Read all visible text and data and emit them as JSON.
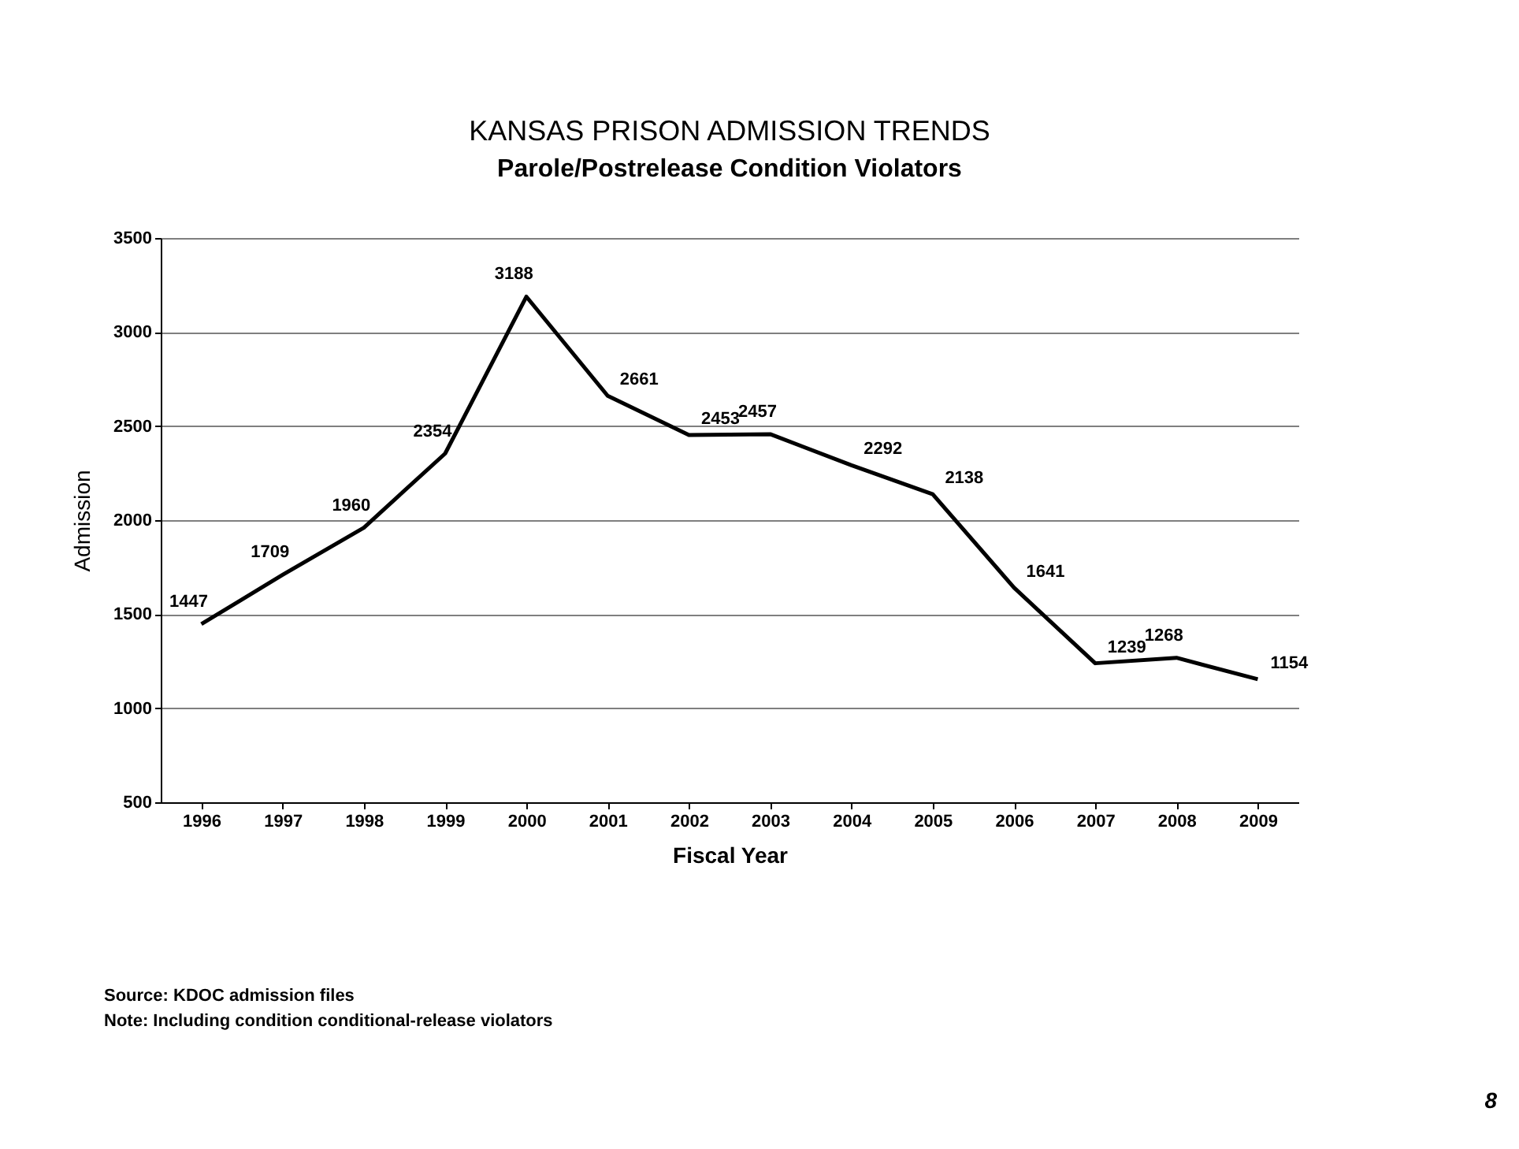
{
  "chart_data": {
    "type": "line",
    "title": "KANSAS PRISON ADMISSION TRENDS",
    "subtitle": "Parole/Postrelease Condition Violators",
    "xlabel": "Fiscal Year",
    "ylabel": "Admission",
    "categories": [
      "1996",
      "1997",
      "1998",
      "1999",
      "2000",
      "2001",
      "2002",
      "2003",
      "2004",
      "2005",
      "2006",
      "2007",
      "2008",
      "2009"
    ],
    "series": [
      {
        "color": "#000000",
        "values": [
          1447,
          1709,
          1960,
          2354,
          3188,
          2661,
          2453,
          2457,
          2292,
          2138,
          1641,
          1239,
          1268,
          1154
        ]
      }
    ],
    "ylim": [
      500,
      3500
    ],
    "yticks": [
      500,
      1000,
      1500,
      2000,
      2500,
      3000,
      3500
    ],
    "grid": "y",
    "data_labels": true,
    "legend": false,
    "marker": "none",
    "line_style": "solid",
    "annotations": [
      "Source: KDOC admission files",
      "Note: Including condition conditional-release violators",
      "8"
    ]
  }
}
